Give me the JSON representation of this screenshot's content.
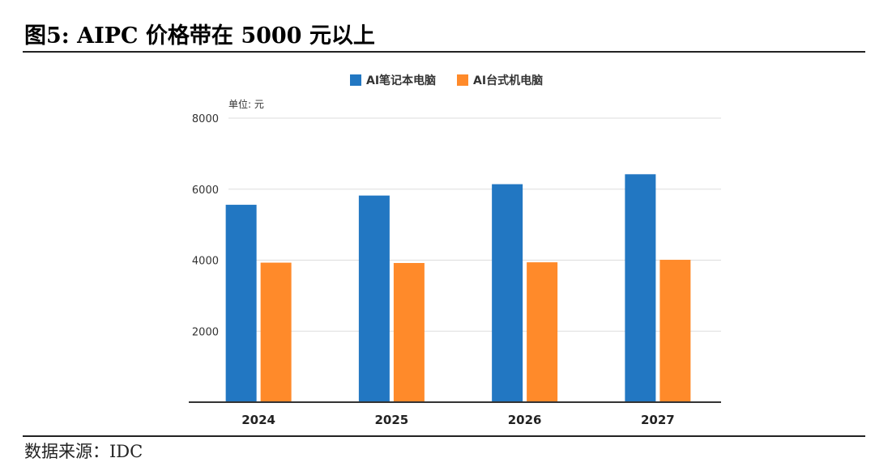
{
  "figure": {
    "title": "图5:  AIPC 价格带在 5000 元以上",
    "source": "数据来源：IDC"
  },
  "chart_data": {
    "type": "bar",
    "categories": [
      "2024",
      "2025",
      "2026",
      "2027"
    ],
    "series": [
      {
        "name": "AI笔记本电脑",
        "values": [
          5560,
          5820,
          6140,
          6420
        ],
        "color": "#2277c2"
      },
      {
        "name": "AI台式机电脑",
        "values": [
          3930,
          3920,
          3940,
          4010
        ],
        "color": "#ff8a2a"
      }
    ],
    "unit_label": "单位: 元",
    "ylim": [
      0,
      8000
    ],
    "yticks": [
      "2000",
      "4000",
      "6000",
      "8000"
    ],
    "grid": true,
    "legend_position": "top"
  }
}
